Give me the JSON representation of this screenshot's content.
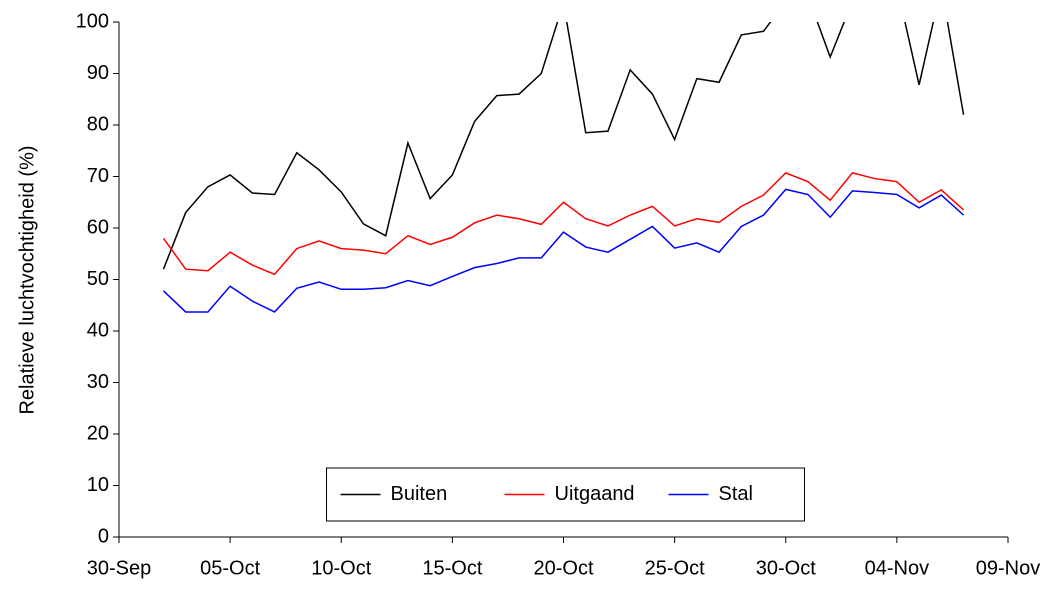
{
  "chart_data": {
    "type": "line",
    "y_label": "Relatieve luchtvochtigheid (%)",
    "x": [
      "02-Oct",
      "03-Oct",
      "04-Oct",
      "05-Oct",
      "06-Oct",
      "07-Oct",
      "08-Oct",
      "09-Oct",
      "10-Oct",
      "11-Oct",
      "12-Oct",
      "13-Oct",
      "14-Oct",
      "15-Oct",
      "16-Oct",
      "17-Oct",
      "18-Oct",
      "19-Oct",
      "20-Oct",
      "21-Oct",
      "22-Oct",
      "23-Oct",
      "24-Oct",
      "25-Oct",
      "26-Oct",
      "27-Oct",
      "28-Oct",
      "29-Oct",
      "30-Oct",
      "31-Oct",
      "01-Nov",
      "02-Nov",
      "03-Nov",
      "04-Nov",
      "05-Nov",
      "06-Nov",
      "07-Nov"
    ],
    "series": [
      {
        "name": "Buiten",
        "color": "#000000",
        "values": [
          52,
          63,
          68,
          70.3,
          66.8,
          66.5,
          74.6,
          71.3,
          67,
          60.8,
          58.5,
          76.5,
          65.7,
          70.3,
          80.7,
          85.7,
          86,
          90,
          103.7,
          78.5,
          78.8,
          90.7,
          86,
          77.2,
          89,
          88.3,
          97.5,
          98.2,
          104,
          105,
          93.2,
          104,
          105,
          107,
          87.8,
          106.9,
          82
        ]
      },
      {
        "name": "Uitgaand",
        "color": "#ff0000",
        "values": [
          58,
          52,
          51.7,
          55.3,
          52.8,
          51,
          56,
          57.5,
          56,
          55.7,
          55,
          58.5,
          56.8,
          58.2,
          61,
          62.5,
          61.8,
          60.7,
          65,
          61.8,
          60.4,
          62.5,
          64.2,
          60.4,
          61.8,
          61.1,
          64.2,
          66.4,
          70.7,
          69,
          65.4,
          70.7,
          69.6,
          69,
          65,
          67.4,
          63.5
        ]
      },
      {
        "name": "Stal",
        "color": "#0000ff",
        "values": [
          47.8,
          43.7,
          43.7,
          48.7,
          45.8,
          43.7,
          48.3,
          49.5,
          48.1,
          48.1,
          48.4,
          49.8,
          48.8,
          50.6,
          52.3,
          53.1,
          54.2,
          54.2,
          59.2,
          56.3,
          55.3,
          57.8,
          60.3,
          56.1,
          57.1,
          55.3,
          60.3,
          62.5,
          67.5,
          66.5,
          62.1,
          67.2,
          66.9,
          66.5,
          63.9,
          66.4,
          62.5
        ]
      }
    ],
    "xlim": [
      "30-Sep",
      "09-Nov"
    ],
    "xticks": [
      "30-Sep",
      "05-Oct",
      "10-Oct",
      "15-Oct",
      "20-Oct",
      "25-Oct",
      "30-Oct",
      "04-Nov",
      "09-Nov"
    ],
    "ylim": [
      0,
      100
    ],
    "yticks": [
      0,
      10,
      20,
      30,
      40,
      50,
      60,
      70,
      80,
      90,
      100
    ],
    "grid": false,
    "legend": "bottom-center"
  }
}
